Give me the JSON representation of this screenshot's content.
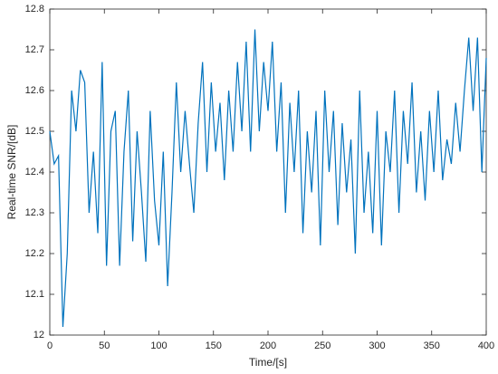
{
  "chart_data": {
    "type": "line",
    "xlabel": "Time/[s]",
    "ylabel": "Real-time SNR/[dB]",
    "x": [
      0,
      4,
      8,
      12,
      16,
      20,
      24,
      28,
      32,
      36,
      40,
      44,
      48,
      52,
      56,
      60,
      64,
      68,
      72,
      76,
      80,
      84,
      88,
      92,
      96,
      100,
      104,
      108,
      112,
      116,
      120,
      124,
      128,
      132,
      136,
      140,
      144,
      148,
      152,
      156,
      160,
      164,
      168,
      172,
      176,
      180,
      184,
      188,
      192,
      196,
      200,
      204,
      208,
      212,
      216,
      220,
      224,
      228,
      232,
      236,
      240,
      244,
      248,
      252,
      256,
      260,
      264,
      268,
      272,
      276,
      280,
      284,
      288,
      292,
      296,
      300,
      304,
      308,
      312,
      316,
      320,
      324,
      328,
      332,
      336,
      340,
      344,
      348,
      352,
      356,
      360,
      364,
      368,
      372,
      376,
      380,
      384,
      388,
      392,
      396,
      400
    ],
    "series": [
      {
        "name": "SNR",
        "color": "#0072bd",
        "values": [
          12.5,
          12.42,
          12.44,
          12.02,
          12.2,
          12.6,
          12.5,
          12.65,
          12.62,
          12.3,
          12.45,
          12.25,
          12.67,
          12.17,
          12.5,
          12.55,
          12.17,
          12.45,
          12.6,
          12.23,
          12.5,
          12.35,
          12.18,
          12.55,
          12.33,
          12.22,
          12.45,
          12.12,
          12.35,
          12.62,
          12.4,
          12.55,
          12.42,
          12.3,
          12.52,
          12.67,
          12.4,
          12.62,
          12.45,
          12.57,
          12.38,
          12.6,
          12.45,
          12.67,
          12.5,
          12.72,
          12.45,
          12.75,
          12.5,
          12.67,
          12.55,
          12.72,
          12.45,
          12.62,
          12.3,
          12.57,
          12.4,
          12.6,
          12.25,
          12.5,
          12.35,
          12.55,
          12.22,
          12.6,
          12.4,
          12.55,
          12.27,
          12.52,
          12.35,
          12.48,
          12.2,
          12.6,
          12.3,
          12.45,
          12.25,
          12.55,
          12.22,
          12.5,
          12.4,
          12.6,
          12.3,
          12.55,
          12.42,
          12.62,
          12.35,
          12.5,
          12.33,
          12.55,
          12.4,
          12.6,
          12.38,
          12.48,
          12.42,
          12.57,
          12.45,
          12.6,
          12.73,
          12.55,
          12.73,
          12.4,
          12.68
        ]
      }
    ],
    "xlim": [
      0,
      400
    ],
    "xticks": [
      0,
      50,
      100,
      150,
      200,
      250,
      300,
      350,
      400
    ],
    "ylim": [
      12,
      12.8
    ],
    "yticks": [
      {
        "value": 12,
        "label": "12"
      },
      {
        "value": 12.1,
        "label": "12.1"
      },
      {
        "value": 12.2,
        "label": "12.2"
      },
      {
        "value": 12.3,
        "label": "12.3"
      },
      {
        "value": 12.4,
        "label": "12.4"
      },
      {
        "value": 12.5,
        "label": "12.5"
      },
      {
        "value": 12.6,
        "label": "12.6"
      },
      {
        "value": 12.7,
        "label": "12.7"
      },
      {
        "value": 12.8,
        "label": "12.8"
      }
    ]
  }
}
